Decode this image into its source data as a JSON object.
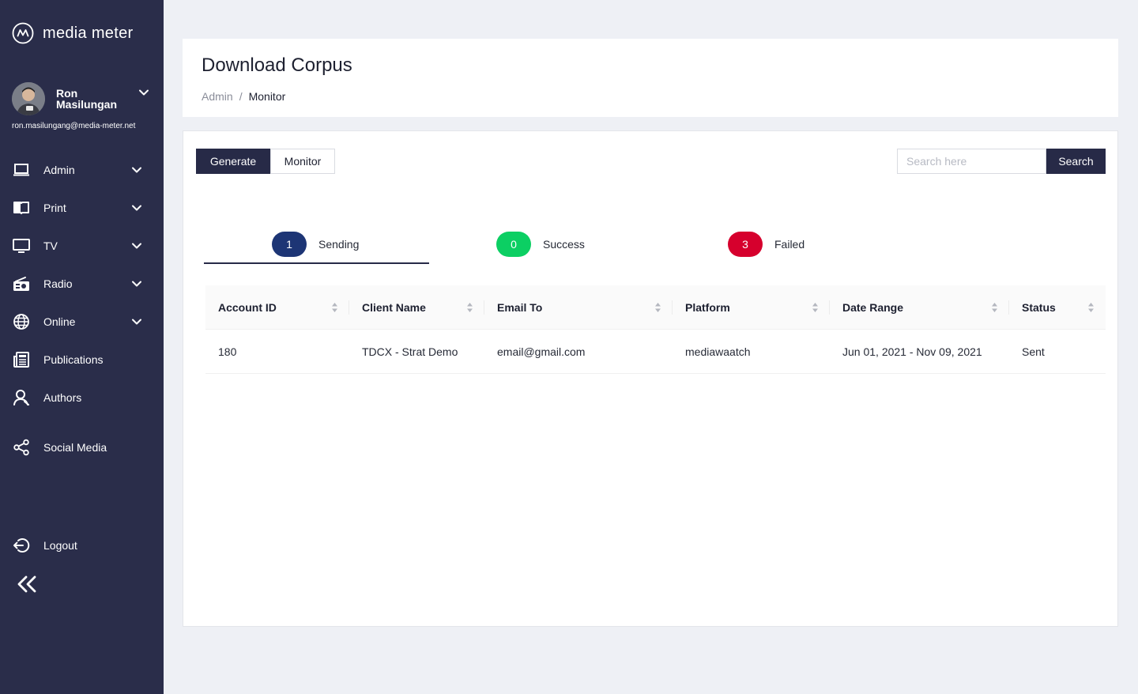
{
  "brand": {
    "name": "media meter"
  },
  "user": {
    "first_name": "Ron",
    "last_name": "Masilungan",
    "email": "ron.masilungang@media-meter.net"
  },
  "sidebar": {
    "items": [
      {
        "label": "Admin",
        "icon": "laptop-icon",
        "expandable": true
      },
      {
        "label": "Print",
        "icon": "book-icon",
        "expandable": true
      },
      {
        "label": "TV",
        "icon": "monitor-icon",
        "expandable": true
      },
      {
        "label": "Radio",
        "icon": "radio-icon",
        "expandable": true
      },
      {
        "label": "Online",
        "icon": "globe-icon",
        "expandable": true
      },
      {
        "label": "Publications",
        "icon": "newspaper-icon",
        "expandable": false
      },
      {
        "label": "Authors",
        "icon": "user-icon",
        "expandable": false
      },
      {
        "label": "Social Media",
        "icon": "share-icon",
        "expandable": false
      }
    ],
    "logout_label": "Logout",
    "collapse_icon": "double-chevron-left-icon"
  },
  "header": {
    "title": "Download Corpus",
    "breadcrumb": [
      "Admin",
      "Monitor"
    ],
    "breadcrumb_separator": "/"
  },
  "toolbar": {
    "generate_label": "Generate",
    "monitor_label": "Monitor",
    "search_placeholder": "Search here",
    "search_value": "",
    "search_button": "Search"
  },
  "status_tabs": [
    {
      "label": "Sending",
      "count": "1",
      "color": "#1d3575",
      "active": true
    },
    {
      "label": "Success",
      "count": "0",
      "color": "#0ccf63",
      "active": false
    },
    {
      "label": "Failed",
      "count": "3",
      "color": "#d6002d",
      "active": false
    }
  ],
  "table": {
    "columns": [
      "Account ID",
      "Client Name",
      "Email To",
      "Platform",
      "Date Range",
      "Status"
    ],
    "rows": [
      [
        "180",
        "TDCX - Strat Demo",
        "email@gmail.com",
        "mediawaatch",
        "Jun 01, 2021 - Nov 09, 2021",
        "Sent"
      ]
    ]
  },
  "colors": {
    "sidebar_bg": "#2a2d4a",
    "primary_button": "#272a47",
    "page_bg": "#eef0f5"
  }
}
